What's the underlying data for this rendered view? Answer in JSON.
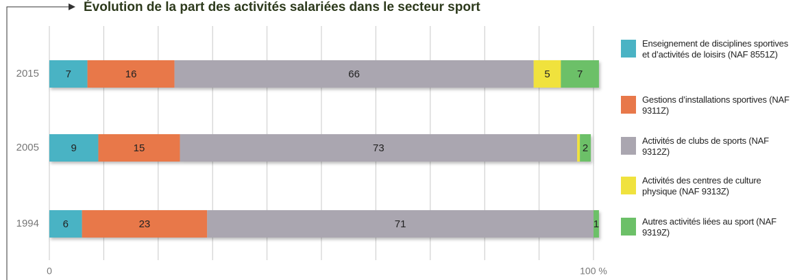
{
  "chart_data": {
    "type": "stacked-barh",
    "title": "Évolution de la part des activités salariées dans le secteur sport",
    "categories": [
      "2015",
      "2005",
      "1994"
    ],
    "series": [
      {
        "name": "Enseignement de disciplines sportives et d’activités de loisirs (NAF 8551Z)",
        "color": "#4ab3c4",
        "values": [
          7,
          9,
          6
        ]
      },
      {
        "name": "Gestions d’installations sportives (NAF 9311Z)",
        "color": "#e8784a",
        "values": [
          16,
          15,
          23
        ]
      },
      {
        "name": "Activités de clubs de sports (NAF 9312Z)",
        "color": "#aaa6b0",
        "values": [
          66,
          73,
          71
        ]
      },
      {
        "name": "Activités des centres de culture physique (NAF 9313Z)",
        "color": "#f0e23e",
        "values": [
          5,
          0.5,
          null
        ],
        "value_labels": [
          "5",
          null,
          null
        ]
      },
      {
        "name": "Autres activités liées au sport (NAF 9319Z)",
        "color": "#6cc068",
        "values": [
          7,
          2,
          1
        ]
      }
    ],
    "xlim": [
      0,
      100
    ],
    "xticks": [
      0,
      {
        "value": 10,
        "label": null
      },
      {
        "value": 20,
        "label": null
      },
      {
        "value": 30,
        "label": null
      },
      {
        "value": 40,
        "label": null
      },
      {
        "value": 50,
        "label": null
      },
      {
        "value": 60,
        "label": null
      },
      {
        "value": 70,
        "label": null
      },
      {
        "value": 80,
        "label": null
      },
      {
        "value": 90,
        "label": null
      },
      {
        "value": 100,
        "label": "100 %"
      }
    ],
    "grid": true,
    "legend": "right"
  }
}
